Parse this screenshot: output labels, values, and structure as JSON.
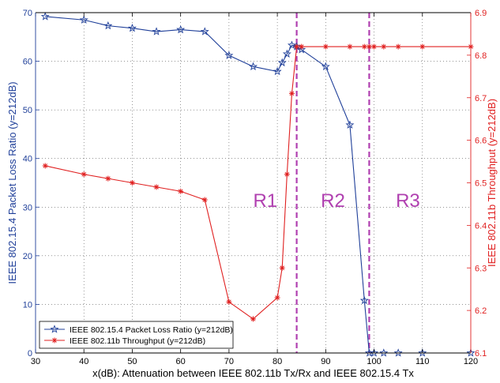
{
  "chart_data": {
    "type": "line",
    "xlabel": "x(dB): Attenuation between IEEE 802.11b Tx/Rx and IEEE 802.15.4 Tx",
    "ylabel": "IEEE 802.15.4 Packet Loss Ratio (y=212dB)",
    "y2label": "IEEE 802.11b Throughput (y=212dB)",
    "xlim": [
      30,
      120
    ],
    "ylim": [
      0,
      70
    ],
    "y2lim": [
      6.1,
      6.9
    ],
    "xticks": [
      "30",
      "40",
      "50",
      "60",
      "70",
      "80",
      "90",
      "100",
      "110",
      "120"
    ],
    "yticks": [
      "0",
      "10",
      "20",
      "30",
      "40",
      "50",
      "60",
      "70"
    ],
    "y2ticks": [
      "6.1",
      "6.2",
      "6.3",
      "6.4",
      "6.5",
      "6.6",
      "6.7",
      "6.8",
      "6.9"
    ],
    "grid": true,
    "legend_position": "bottom-left",
    "series": [
      {
        "name": "IEEE 802.15.4 Packet Loss Ratio (y=212dB)",
        "axis": "left",
        "color": "#1f3f99",
        "marker": "star",
        "x": [
          32,
          40,
          45,
          50,
          55,
          60,
          65,
          70,
          75,
          80,
          81,
          82,
          83,
          84,
          85,
          90,
          95,
          98,
          99,
          100,
          102,
          105,
          110,
          120
        ],
        "y": [
          69.2,
          68.5,
          67.3,
          66.8,
          66.1,
          66.5,
          66.1,
          61.2,
          58.9,
          57.9,
          59.7,
          61.5,
          63.3,
          63,
          62.4,
          58.9,
          46.9,
          10.8,
          0,
          0,
          0,
          0,
          0,
          0
        ]
      },
      {
        "name": "IEEE 802.11b Throughput (y=212dB)",
        "axis": "right",
        "color": "#e02020",
        "marker": "asterisk",
        "x": [
          32,
          40,
          45,
          50,
          55,
          60,
          65,
          70,
          75,
          80,
          81,
          82,
          83,
          84,
          85,
          90,
          95,
          98,
          99,
          100,
          102,
          105,
          110,
          120
        ],
        "y": [
          6.54,
          6.52,
          6.51,
          6.5,
          6.49,
          6.48,
          6.46,
          6.22,
          6.18,
          6.23,
          6.3,
          6.52,
          6.71,
          6.82,
          6.82,
          6.82,
          6.82,
          6.82,
          6.82,
          6.82,
          6.82,
          6.82,
          6.82,
          6.82
        ]
      }
    ],
    "regions": [
      {
        "label": "R1",
        "x": 77.5
      },
      {
        "label": "R2",
        "x": 91.5
      },
      {
        "label": "R3",
        "x": 107
      }
    ],
    "region_dividers": [
      84,
      99
    ],
    "colors": {
      "left_axis": "#1f3f99",
      "right_axis": "#e02020",
      "divider": "#b040b0"
    }
  }
}
